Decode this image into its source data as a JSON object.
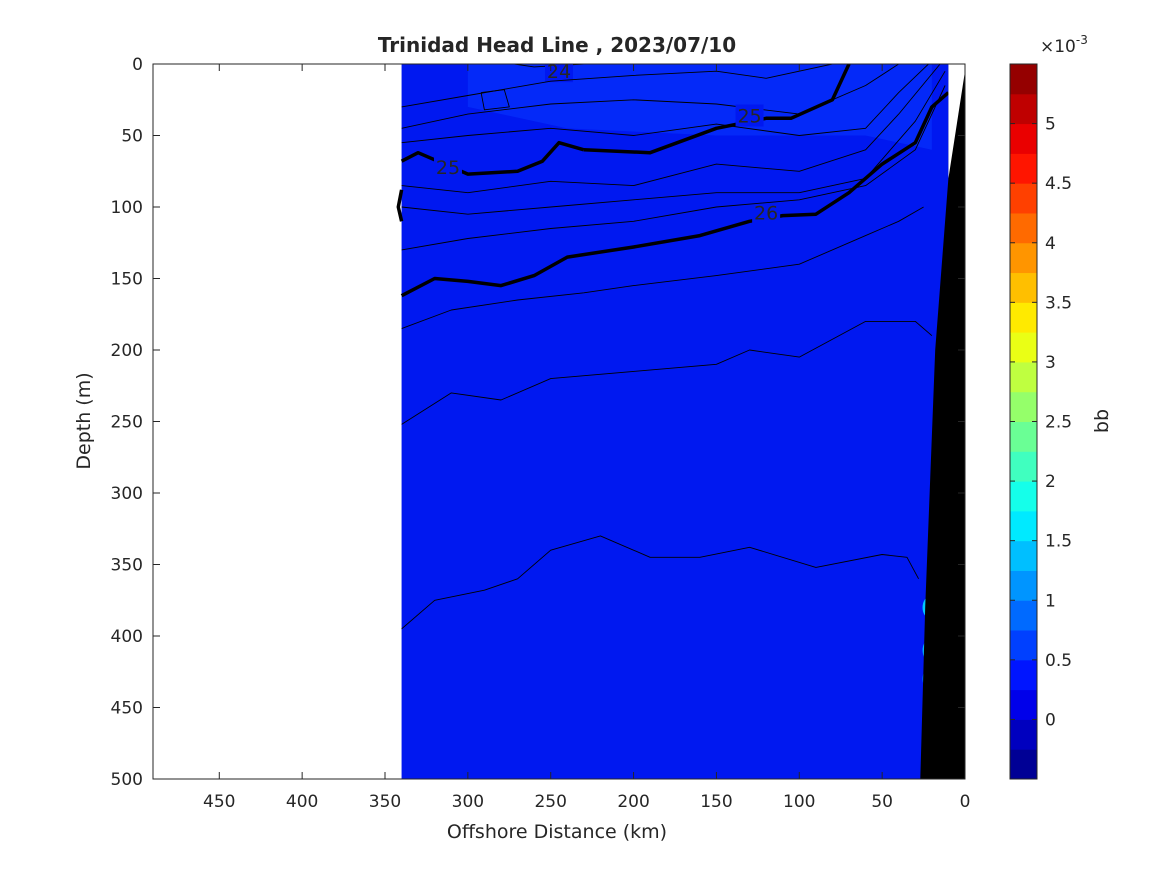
{
  "chart_data": {
    "type": "heatmap",
    "title": "Trinidad Head Line , 2023/07/10",
    "xlabel": "Offshore Distance (km)",
    "ylabel": "Depth (m)",
    "x_reversed": true,
    "y_reversed": true,
    "xlim": [
      490,
      0
    ],
    "ylim": [
      0,
      500
    ],
    "xticks": [
      450,
      400,
      350,
      300,
      250,
      200,
      150,
      100,
      50,
      0
    ],
    "yticks": [
      0,
      50,
      100,
      150,
      200,
      250,
      300,
      350,
      400,
      450,
      500
    ],
    "data_extent_km": [
      340,
      0
    ],
    "colorbar": {
      "label": "bb",
      "exponent_label": "×10",
      "exponent_power": "-3",
      "range": [
        -0.0005,
        0.0055
      ],
      "ticks": [
        "0",
        "0.5",
        "1",
        "1.5",
        "2",
        "2.5",
        "3",
        "3.5",
        "4",
        "4.5",
        "5"
      ],
      "tick_values": [
        0,
        0.5,
        1,
        1.5,
        2,
        2.5,
        3,
        3.5,
        4,
        4.5,
        5
      ],
      "colormap": "jet",
      "levels": 24
    },
    "field": {
      "background_color": "#0018f0",
      "surface_patch_color": "#0838ff",
      "nearshore_highlights": [
        {
          "x": 22,
          "depth": 380,
          "color": "#00c8ff"
        },
        {
          "x": 22,
          "depth": 410,
          "color": "#00b0ff"
        },
        {
          "x": 22,
          "depth": 430,
          "color": "#0090ff"
        }
      ]
    },
    "bathymetry": {
      "color": "#000000",
      "points": [
        [
          10,
          0
        ],
        [
          10,
          80
        ],
        [
          18,
          200
        ],
        [
          24,
          380
        ],
        [
          27,
          500
        ]
      ]
    },
    "density_contours": [
      {
        "label": "24",
        "bold": false,
        "label_pos": [
          245,
          5
        ],
        "points": [
          [
            272,
            0
          ],
          [
            260,
            2
          ],
          [
            230,
            0
          ]
        ]
      },
      {
        "label": "",
        "bold": false,
        "points": [
          [
            292,
            20
          ],
          [
            278,
            18
          ],
          [
            275,
            30
          ],
          [
            290,
            32
          ],
          [
            292,
            20
          ]
        ]
      },
      {
        "label": "",
        "bold": false,
        "points": [
          [
            340,
            30
          ],
          [
            300,
            22
          ],
          [
            250,
            12
          ],
          [
            200,
            8
          ],
          [
            150,
            5
          ],
          [
            120,
            10
          ],
          [
            80,
            0
          ]
        ]
      },
      {
        "label": "",
        "bold": false,
        "points": [
          [
            340,
            45
          ],
          [
            300,
            35
          ],
          [
            250,
            28
          ],
          [
            200,
            25
          ],
          [
            150,
            28
          ],
          [
            100,
            35
          ],
          [
            60,
            15
          ],
          [
            40,
            0
          ]
        ]
      },
      {
        "label": "25",
        "bold": true,
        "label_pos": [
          130,
          36
        ],
        "points": [
          [
            230,
            60
          ],
          [
            190,
            62
          ],
          [
            150,
            45
          ],
          [
            120,
            38
          ],
          [
            105,
            38
          ],
          [
            80,
            25
          ],
          [
            70,
            0
          ]
        ]
      },
      {
        "label": "25",
        "bold": true,
        "label_pos": [
          312,
          72
        ],
        "points": [
          [
            340,
            68
          ],
          [
            330,
            62
          ],
          [
            300,
            77
          ],
          [
            270,
            75
          ],
          [
            255,
            68
          ],
          [
            245,
            55
          ],
          [
            230,
            60
          ]
        ]
      },
      {
        "label": "",
        "bold": true,
        "points": [
          [
            340,
            88
          ],
          [
            342,
            100
          ],
          [
            340,
            110
          ]
        ]
      },
      {
        "label": "",
        "bold": false,
        "points": [
          [
            340,
            55
          ],
          [
            300,
            50
          ],
          [
            250,
            45
          ],
          [
            200,
            50
          ],
          [
            150,
            42
          ],
          [
            100,
            50
          ],
          [
            60,
            45
          ],
          [
            40,
            20
          ],
          [
            22,
            0
          ]
        ]
      },
      {
        "label": "",
        "bold": false,
        "points": [
          [
            340,
            85
          ],
          [
            300,
            90
          ],
          [
            250,
            82
          ],
          [
            200,
            85
          ],
          [
            150,
            70
          ],
          [
            100,
            75
          ],
          [
            60,
            60
          ],
          [
            40,
            35
          ],
          [
            15,
            0
          ]
        ]
      },
      {
        "label": "",
        "bold": false,
        "points": [
          [
            340,
            100
          ],
          [
            300,
            105
          ],
          [
            250,
            100
          ],
          [
            200,
            95
          ],
          [
            150,
            90
          ],
          [
            100,
            90
          ],
          [
            60,
            80
          ],
          [
            30,
            40
          ],
          [
            12,
            5
          ]
        ]
      },
      {
        "label": "26",
        "bold": true,
        "label_pos": [
          120,
          104
        ],
        "points": [
          [
            340,
            162
          ],
          [
            320,
            150
          ],
          [
            300,
            152
          ],
          [
            280,
            155
          ],
          [
            260,
            148
          ],
          [
            240,
            135
          ],
          [
            200,
            128
          ],
          [
            160,
            120
          ],
          [
            130,
            110
          ],
          [
            110,
            106
          ],
          [
            90,
            105
          ],
          [
            70,
            90
          ],
          [
            50,
            70
          ],
          [
            30,
            55
          ],
          [
            20,
            30
          ],
          [
            10,
            20
          ]
        ]
      },
      {
        "label": "",
        "bold": false,
        "points": [
          [
            340,
            130
          ],
          [
            300,
            122
          ],
          [
            250,
            115
          ],
          [
            200,
            110
          ],
          [
            150,
            100
          ],
          [
            100,
            95
          ],
          [
            60,
            85
          ],
          [
            30,
            60
          ],
          [
            12,
            15
          ]
        ]
      },
      {
        "label": "",
        "bold": false,
        "points": [
          [
            340,
            185
          ],
          [
            310,
            172
          ],
          [
            270,
            165
          ],
          [
            230,
            160
          ],
          [
            200,
            155
          ],
          [
            150,
            148
          ],
          [
            100,
            140
          ],
          [
            60,
            120
          ],
          [
            40,
            110
          ],
          [
            25,
            100
          ]
        ]
      },
      {
        "label": "",
        "bold": false,
        "points": [
          [
            340,
            252
          ],
          [
            310,
            230
          ],
          [
            280,
            235
          ],
          [
            250,
            220
          ],
          [
            200,
            215
          ],
          [
            150,
            210
          ],
          [
            130,
            200
          ],
          [
            100,
            205
          ],
          [
            60,
            180
          ],
          [
            30,
            180
          ],
          [
            20,
            190
          ]
        ]
      },
      {
        "label": "",
        "bold": false,
        "points": [
          [
            340,
            395
          ],
          [
            320,
            375
          ],
          [
            290,
            368
          ],
          [
            270,
            360
          ],
          [
            250,
            340
          ],
          [
            220,
            330
          ],
          [
            190,
            345
          ],
          [
            160,
            345
          ],
          [
            130,
            338
          ],
          [
            90,
            352
          ],
          [
            50,
            343
          ],
          [
            35,
            345
          ],
          [
            28,
            360
          ]
        ]
      }
    ]
  }
}
